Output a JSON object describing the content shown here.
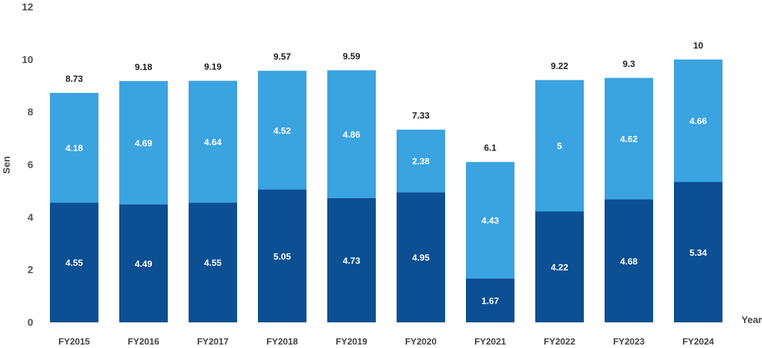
{
  "chart_data": {
    "type": "bar",
    "stacked": true,
    "categories": [
      "FY2015",
      "FY2016",
      "FY2017",
      "FY2018",
      "FY2019",
      "FY2020",
      "FY2021",
      "FY2022",
      "FY2023",
      "FY2024"
    ],
    "series": [
      {
        "values": [
          4.55,
          4.49,
          4.55,
          5.05,
          4.73,
          4.95,
          1.67,
          4.22,
          4.68,
          5.34
        ],
        "color": "#0C4F92"
      },
      {
        "values": [
          4.18,
          4.69,
          4.64,
          4.52,
          4.86,
          2.38,
          4.43,
          5,
          4.62,
          4.66
        ],
        "color": "#3AA3E0"
      }
    ],
    "totals": [
      "8.73",
      "9.18",
      "9.19",
      "9.57",
      "9.59",
      "7.33",
      "6.1",
      "9.22",
      "9.3",
      "10"
    ],
    "xlabel": "Year",
    "ylabel": "Sen",
    "ylim": [
      0,
      12
    ],
    "yticks": [
      0,
      2,
      4,
      6,
      8,
      10,
      12
    ],
    "grid": false
  }
}
